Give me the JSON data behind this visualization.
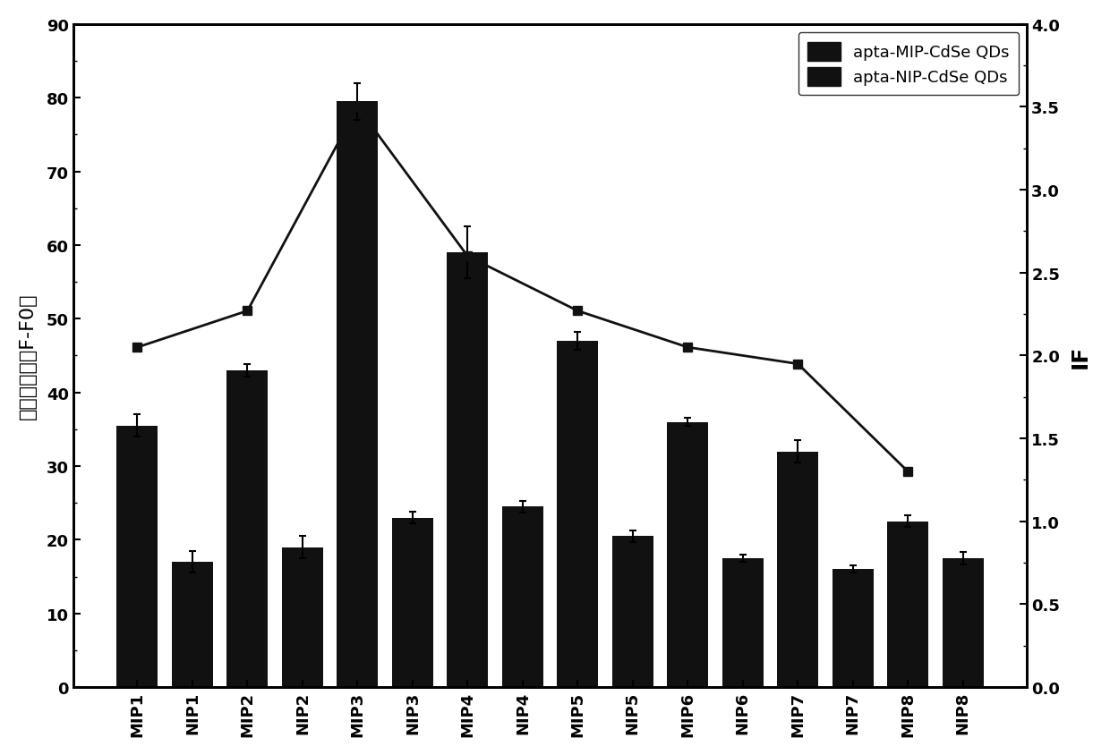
{
  "categories": [
    "MIP1",
    "NIP1",
    "MIP2",
    "NIP2",
    "MIP3",
    "NIP3",
    "MIP4",
    "NIP4",
    "MIP5",
    "NIP5",
    "MIP6",
    "NIP6",
    "MIP7",
    "NIP7",
    "MIP8",
    "NIP8"
  ],
  "bar_values": [
    35.5,
    17.0,
    43.0,
    19.0,
    79.5,
    23.0,
    59.0,
    24.5,
    47.0,
    20.5,
    36.0,
    17.5,
    32.0,
    16.0,
    22.5,
    17.5
  ],
  "bar_errors": [
    1.5,
    1.5,
    0.8,
    1.5,
    2.5,
    0.8,
    3.5,
    0.8,
    1.2,
    0.8,
    0.5,
    0.5,
    1.5,
    0.5,
    0.8,
    0.8
  ],
  "line_if_values": [
    2.05,
    2.27,
    3.5,
    2.6,
    2.27,
    2.05,
    1.95,
    1.3
  ],
  "mip_x_positions": [
    0,
    2,
    4,
    6,
    8,
    10,
    12,
    14
  ],
  "bar_color": "#111111",
  "line_color": "#111111",
  "left_ylabel": "荧光增强量（F-F0）",
  "right_ylabel": "IF",
  "ylim_left": [
    0,
    90
  ],
  "ylim_right": [
    0.0,
    4.0
  ],
  "left_yticks": [
    0,
    10,
    20,
    30,
    40,
    50,
    60,
    70,
    80,
    90
  ],
  "right_yticks": [
    0.0,
    0.5,
    1.0,
    1.5,
    2.0,
    2.5,
    3.0,
    3.5,
    4.0
  ],
  "legend_labels": [
    "apta-MIP-CdSe QDs",
    "apta-NIP-CdSe QDs"
  ],
  "background_color": "#ffffff",
  "axis_fontsize": 16,
  "tick_fontsize": 13,
  "legend_fontsize": 13
}
